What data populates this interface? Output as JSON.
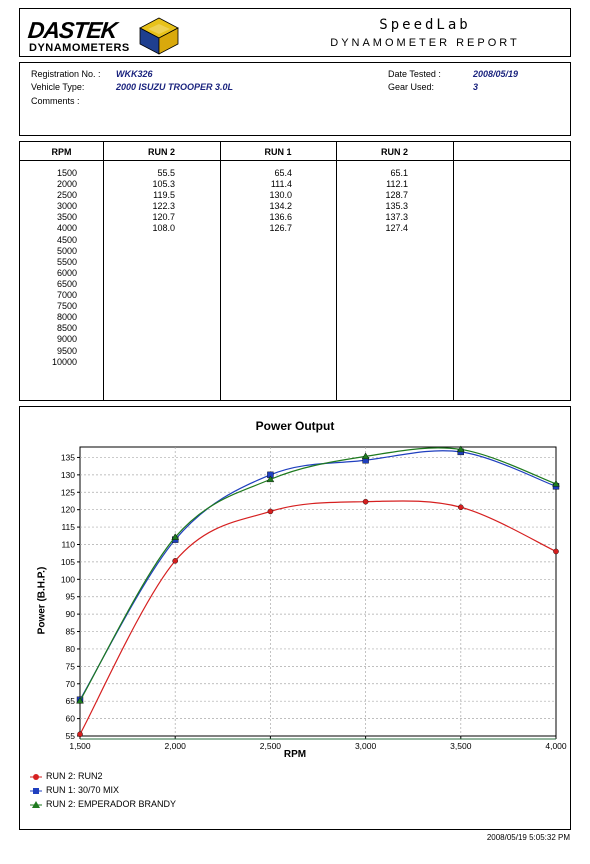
{
  "header": {
    "logo_line1": "DASTEK",
    "logo_line2": "DYNAMOMETERS",
    "title": "SpeedLab",
    "subtitle": "DYNAMOMETER REPORT"
  },
  "info": {
    "registration_label": "Registration No. :",
    "registration_value": "WKK326",
    "vehicle_label": "Vehicle Type:",
    "vehicle_value": "2000 ISUZU TROOPER 3.0L",
    "comments_label": "Comments :",
    "date_label": "Date Tested :",
    "date_value": "2008/05/19",
    "gear_label": "Gear Used:",
    "gear_value": "3"
  },
  "table": {
    "headers": [
      "RPM",
      "RUN 2",
      "RUN 1",
      "RUN 2"
    ],
    "rpm": [
      "1500",
      "2000",
      "2500",
      "3000",
      "3500",
      "4000",
      "4500",
      "5000",
      "5500",
      "6000",
      "6500",
      "7000",
      "7500",
      "8000",
      "8500",
      "9000",
      "9500",
      "10000"
    ],
    "col1": [
      "55.5",
      "105.3",
      "119.5",
      "122.3",
      "120.7",
      "108.0"
    ],
    "col2": [
      "65.4",
      "111.4",
      "130.0",
      "134.2",
      "136.6",
      "126.7"
    ],
    "col3": [
      "65.1",
      "112.1",
      "128.7",
      "135.3",
      "137.3",
      "127.4"
    ]
  },
  "chart_data": {
    "type": "line",
    "title": "Power Output",
    "xlabel": "RPM",
    "ylabel": "Power (B.H.P.)",
    "x": [
      1500,
      2000,
      2500,
      3000,
      3500,
      4000
    ],
    "x_tick_labels": [
      "1,500",
      "2,000",
      "2,500",
      "3,000",
      "3,500",
      "4,000"
    ],
    "xlim": [
      1500,
      4000
    ],
    "ylim": [
      55,
      138
    ],
    "y_ticks": [
      55,
      60,
      65,
      70,
      75,
      80,
      85,
      90,
      95,
      100,
      105,
      110,
      115,
      120,
      125,
      130,
      135
    ],
    "grid": true,
    "legend_position": "bottom-left",
    "series": [
      {
        "name": "RUN 2: RUN2",
        "values": [
          55.5,
          105.3,
          119.5,
          122.3,
          120.7,
          108.0
        ],
        "color": "#d62020",
        "marker": "circle"
      },
      {
        "name": "RUN 1: 30/70 MIX",
        "values": [
          65.4,
          111.4,
          130.0,
          134.2,
          136.6,
          126.7
        ],
        "color": "#1f3fbf",
        "marker": "square"
      },
      {
        "name": "RUN 2: EMPERADOR BRANDY",
        "values": [
          65.1,
          112.1,
          128.7,
          135.3,
          137.3,
          127.4
        ],
        "color": "#1e7a1e",
        "marker": "triangle"
      }
    ]
  },
  "footer": {
    "timestamp": "2008/05/19 5:05:32 PM"
  }
}
